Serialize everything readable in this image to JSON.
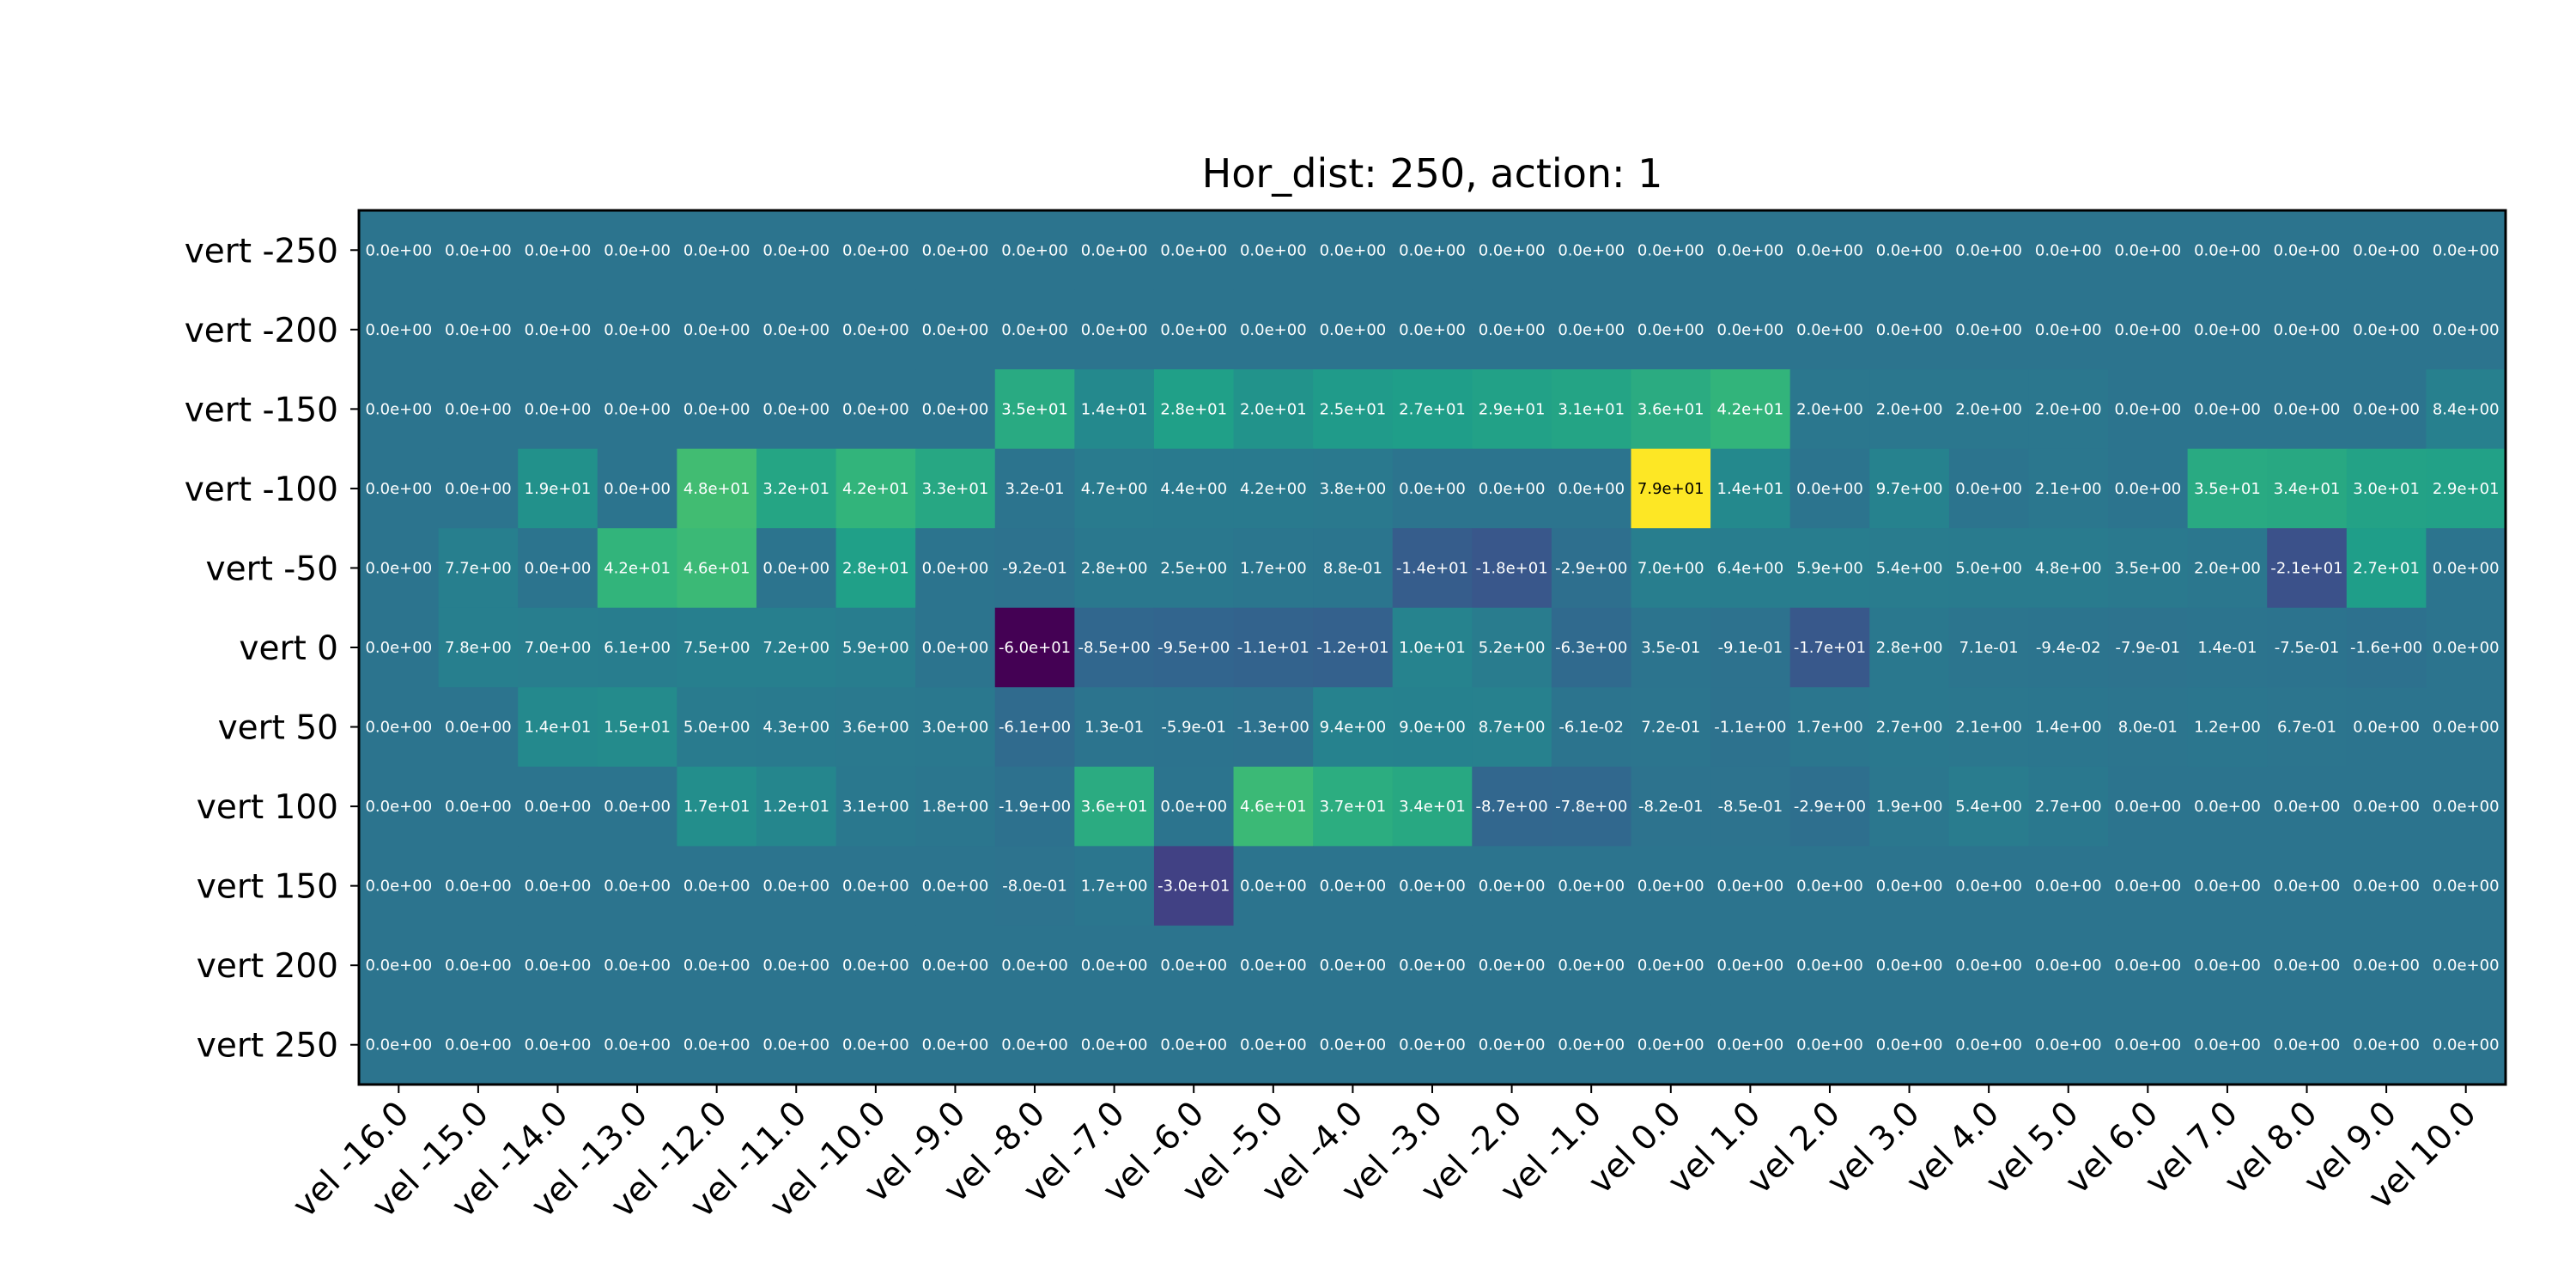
{
  "chart_data": {
    "type": "heatmap",
    "title": "Hor_dist: 250, action: 1",
    "xlabel": "",
    "ylabel": "",
    "colormap": "viridis",
    "vmin": -60,
    "vmax": 79,
    "grid": false,
    "legend": "none",
    "x_categories": [
      "vel -16.0",
      "vel -15.0",
      "vel -14.0",
      "vel -13.0",
      "vel -12.0",
      "vel -11.0",
      "vel -10.0",
      "vel -9.0",
      "vel -8.0",
      "vel -7.0",
      "vel -6.0",
      "vel -5.0",
      "vel -4.0",
      "vel -3.0",
      "vel -2.0",
      "vel -1.0",
      "vel 0.0",
      "vel 1.0",
      "vel 2.0",
      "vel 3.0",
      "vel 4.0",
      "vel 5.0",
      "vel 6.0",
      "vel 7.0",
      "vel 8.0",
      "vel 9.0",
      "vel 10.0"
    ],
    "y_categories": [
      "vert -250",
      "vert -200",
      "vert -150",
      "vert -100",
      "vert -50",
      "vert 0",
      "vert 50",
      "vert 100",
      "vert 150",
      "vert 200",
      "vert 250"
    ],
    "cells": [
      [
        "0.0e+00",
        "0.0e+00",
        "0.0e+00",
        "0.0e+00",
        "0.0e+00",
        "0.0e+00",
        "0.0e+00",
        "0.0e+00",
        "0.0e+00",
        "0.0e+00",
        "0.0e+00",
        "0.0e+00",
        "0.0e+00",
        "0.0e+00",
        "0.0e+00",
        "0.0e+00",
        "0.0e+00",
        "0.0e+00",
        "0.0e+00",
        "0.0e+00",
        "0.0e+00",
        "0.0e+00",
        "0.0e+00",
        "0.0e+00",
        "0.0e+00",
        "0.0e+00",
        "0.0e+00"
      ],
      [
        "0.0e+00",
        "0.0e+00",
        "0.0e+00",
        "0.0e+00",
        "0.0e+00",
        "0.0e+00",
        "0.0e+00",
        "0.0e+00",
        "0.0e+00",
        "0.0e+00",
        "0.0e+00",
        "0.0e+00",
        "0.0e+00",
        "0.0e+00",
        "0.0e+00",
        "0.0e+00",
        "0.0e+00",
        "0.0e+00",
        "0.0e+00",
        "0.0e+00",
        "0.0e+00",
        "0.0e+00",
        "0.0e+00",
        "0.0e+00",
        "0.0e+00",
        "0.0e+00",
        "0.0e+00"
      ],
      [
        "0.0e+00",
        "0.0e+00",
        "0.0e+00",
        "0.0e+00",
        "0.0e+00",
        "0.0e+00",
        "0.0e+00",
        "0.0e+00",
        "3.5e+01",
        "1.4e+01",
        "2.8e+01",
        "2.0e+01",
        "2.5e+01",
        "2.7e+01",
        "2.9e+01",
        "3.1e+01",
        "3.6e+01",
        "4.2e+01",
        "2.0e+00",
        "2.0e+00",
        "2.0e+00",
        "2.0e+00",
        "0.0e+00",
        "0.0e+00",
        "0.0e+00",
        "0.0e+00",
        "8.4e+00"
      ],
      [
        "0.0e+00",
        "0.0e+00",
        "1.9e+01",
        "0.0e+00",
        "4.8e+01",
        "3.2e+01",
        "4.2e+01",
        "3.3e+01",
        "3.2e-01",
        "4.7e+00",
        "4.4e+00",
        "4.2e+00",
        "3.8e+00",
        "0.0e+00",
        "0.0e+00",
        "0.0e+00",
        "7.9e+01",
        "1.4e+01",
        "0.0e+00",
        "9.7e+00",
        "0.0e+00",
        "2.1e+00",
        "0.0e+00",
        "3.5e+01",
        "3.4e+01",
        "3.0e+01",
        "2.9e+01"
      ],
      [
        "0.0e+00",
        "7.7e+00",
        "0.0e+00",
        "4.2e+01",
        "4.6e+01",
        "0.0e+00",
        "2.8e+01",
        "0.0e+00",
        "-9.2e-01",
        "2.8e+00",
        "2.5e+00",
        "1.7e+00",
        "8.8e-01",
        "-1.4e+01",
        "-1.8e+01",
        "-2.9e+00",
        "7.0e+00",
        "6.4e+00",
        "5.9e+00",
        "5.4e+00",
        "5.0e+00",
        "4.8e+00",
        "3.5e+00",
        "2.0e+00",
        "-2.1e+01",
        "2.7e+01",
        "0.0e+00"
      ],
      [
        "0.0e+00",
        "7.8e+00",
        "7.0e+00",
        "6.1e+00",
        "7.5e+00",
        "7.2e+00",
        "5.9e+00",
        "0.0e+00",
        "-6.0e+01",
        "-8.5e+00",
        "-9.5e+00",
        "-1.1e+01",
        "-1.2e+01",
        "1.0e+01",
        "5.2e+00",
        "-6.3e+00",
        "3.5e-01",
        "-9.1e-01",
        "-1.7e+01",
        "2.8e+00",
        "7.1e-01",
        "-9.4e-02",
        "-7.9e-01",
        "1.4e-01",
        "-7.5e-01",
        "-1.6e+00",
        "0.0e+00"
      ],
      [
        "0.0e+00",
        "0.0e+00",
        "1.4e+01",
        "1.5e+01",
        "5.0e+00",
        "4.3e+00",
        "3.6e+00",
        "3.0e+00",
        "-6.1e+00",
        "1.3e-01",
        "-5.9e-01",
        "-1.3e+00",
        "9.4e+00",
        "9.0e+00",
        "8.7e+00",
        "-6.1e-02",
        "7.2e-01",
        "-1.1e+00",
        "1.7e+00",
        "2.7e+00",
        "2.1e+00",
        "1.4e+00",
        "8.0e-01",
        "1.2e+00",
        "6.7e-01",
        "0.0e+00",
        "0.0e+00"
      ],
      [
        "0.0e+00",
        "0.0e+00",
        "0.0e+00",
        "0.0e+00",
        "1.7e+01",
        "1.2e+01",
        "3.1e+00",
        "1.8e+00",
        "-1.9e+00",
        "3.6e+01",
        "0.0e+00",
        "4.6e+01",
        "3.7e+01",
        "3.4e+01",
        "-8.7e+00",
        "-7.8e+00",
        "-8.2e-01",
        "-8.5e-01",
        "-2.9e+00",
        "1.9e+00",
        "5.4e+00",
        "2.7e+00",
        "0.0e+00",
        "0.0e+00",
        "0.0e+00",
        "0.0e+00",
        "0.0e+00"
      ],
      [
        "0.0e+00",
        "0.0e+00",
        "0.0e+00",
        "0.0e+00",
        "0.0e+00",
        "0.0e+00",
        "0.0e+00",
        "0.0e+00",
        "-8.0e-01",
        "1.7e+00",
        "-3.0e+01",
        "0.0e+00",
        "0.0e+00",
        "0.0e+00",
        "0.0e+00",
        "0.0e+00",
        "0.0e+00",
        "0.0e+00",
        "0.0e+00",
        "0.0e+00",
        "0.0e+00",
        "0.0e+00",
        "0.0e+00",
        "0.0e+00",
        "0.0e+00",
        "0.0e+00",
        "0.0e+00"
      ],
      [
        "0.0e+00",
        "0.0e+00",
        "0.0e+00",
        "0.0e+00",
        "0.0e+00",
        "0.0e+00",
        "0.0e+00",
        "0.0e+00",
        "0.0e+00",
        "0.0e+00",
        "0.0e+00",
        "0.0e+00",
        "0.0e+00",
        "0.0e+00",
        "0.0e+00",
        "0.0e+00",
        "0.0e+00",
        "0.0e+00",
        "0.0e+00",
        "0.0e+00",
        "0.0e+00",
        "0.0e+00",
        "0.0e+00",
        "0.0e+00",
        "0.0e+00",
        "0.0e+00",
        "0.0e+00"
      ],
      [
        "0.0e+00",
        "0.0e+00",
        "0.0e+00",
        "0.0e+00",
        "0.0e+00",
        "0.0e+00",
        "0.0e+00",
        "0.0e+00",
        "0.0e+00",
        "0.0e+00",
        "0.0e+00",
        "0.0e+00",
        "0.0e+00",
        "0.0e+00",
        "0.0e+00",
        "0.0e+00",
        "0.0e+00",
        "0.0e+00",
        "0.0e+00",
        "0.0e+00",
        "0.0e+00",
        "0.0e+00",
        "0.0e+00",
        "0.0e+00",
        "0.0e+00",
        "0.0e+00",
        "0.0e+00"
      ]
    ]
  }
}
